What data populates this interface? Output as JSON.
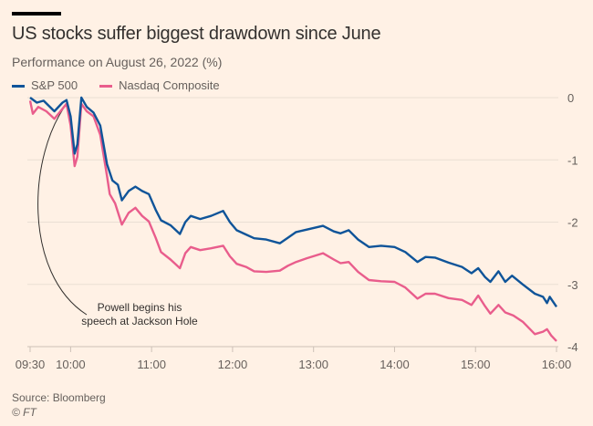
{
  "title": "US stocks suffer biggest drawdown since June",
  "subtitle": "Performance on August 26, 2022 (%)",
  "source": "Source: Bloomberg",
  "credit": "© FT",
  "chart_data": {
    "type": "line",
    "title": "US stocks suffer biggest drawdown since June",
    "subtitle": "Performance on August 26, 2022 (%)",
    "xlabel": "",
    "ylabel": "",
    "xlim": [
      "09:30",
      "16:00"
    ],
    "ylim": [
      -4,
      0
    ],
    "x_ticks": [
      "09:30",
      "10:00",
      "11:00",
      "12:00",
      "13:00",
      "14:00",
      "15:00",
      "16:00"
    ],
    "y_ticks": [
      0,
      -1,
      -2,
      -3,
      -4
    ],
    "grid": true,
    "legend_position": "top-left",
    "annotation": {
      "text_line1": "Powell begins his",
      "text_line2": "speech at Jackson Hole",
      "time": "09:58"
    },
    "series": [
      {
        "name": "S&P 500",
        "color": "#0f5499",
        "points": [
          [
            "09:30",
            0
          ],
          [
            "09:35",
            -0.08
          ],
          [
            "09:40",
            -0.05
          ],
          [
            "09:48",
            -0.22
          ],
          [
            "09:54",
            -0.08
          ],
          [
            "09:57",
            -0.04
          ],
          [
            "10:00",
            -0.3
          ],
          [
            "10:03",
            -0.9
          ],
          [
            "10:05",
            -0.75
          ],
          [
            "10:08",
            0
          ],
          [
            "10:12",
            -0.15
          ],
          [
            "10:17",
            -0.24
          ],
          [
            "10:22",
            -0.45
          ],
          [
            "10:27",
            -1.07
          ],
          [
            "10:31",
            -1.33
          ],
          [
            "10:35",
            -1.4
          ],
          [
            "10:38",
            -1.65
          ],
          [
            "10:43",
            -1.5
          ],
          [
            "10:48",
            -1.43
          ],
          [
            "10:53",
            -1.5
          ],
          [
            "10:58",
            -1.55
          ],
          [
            "11:03",
            -1.8
          ],
          [
            "11:07",
            -1.97
          ],
          [
            "11:14",
            -2.05
          ],
          [
            "11:21",
            -2.19
          ],
          [
            "11:25",
            -2.0
          ],
          [
            "11:29",
            -1.9
          ],
          [
            "11:36",
            -1.95
          ],
          [
            "11:44",
            -1.9
          ],
          [
            "11:53",
            -1.82
          ],
          [
            "11:58",
            -2.0
          ],
          [
            "12:03",
            -2.13
          ],
          [
            "12:10",
            -2.2
          ],
          [
            "12:16",
            -2.26
          ],
          [
            "12:25",
            -2.28
          ],
          [
            "12:35",
            -2.34
          ],
          [
            "12:41",
            -2.25
          ],
          [
            "12:47",
            -2.16
          ],
          [
            "12:55",
            -2.12
          ],
          [
            "13:07",
            -2.06
          ],
          [
            "13:15",
            -2.15
          ],
          [
            "13:20",
            -2.18
          ],
          [
            "13:26",
            -2.13
          ],
          [
            "13:33",
            -2.28
          ],
          [
            "13:41",
            -2.4
          ],
          [
            "13:50",
            -2.38
          ],
          [
            "14:00",
            -2.4
          ],
          [
            "14:08",
            -2.48
          ],
          [
            "14:17",
            -2.64
          ],
          [
            "14:23",
            -2.56
          ],
          [
            "14:30",
            -2.57
          ],
          [
            "14:40",
            -2.65
          ],
          [
            "14:50",
            -2.72
          ],
          [
            "14:57",
            -2.82
          ],
          [
            "15:02",
            -2.74
          ],
          [
            "15:07",
            -2.88
          ],
          [
            "15:11",
            -2.96
          ],
          [
            "15:17",
            -2.79
          ],
          [
            "15:22",
            -2.96
          ],
          [
            "15:27",
            -2.86
          ],
          [
            "15:35",
            -3.0
          ],
          [
            "15:44",
            -3.15
          ],
          [
            "15:50",
            -3.2
          ],
          [
            "15:53",
            -3.3
          ],
          [
            "15:55",
            -3.2
          ],
          [
            "16:00",
            -3.36
          ]
        ]
      },
      {
        "name": "Nasdaq Composite",
        "color": "#e95d8c",
        "points": [
          [
            "09:30",
            -0.05
          ],
          [
            "09:32",
            -0.26
          ],
          [
            "09:36",
            -0.15
          ],
          [
            "09:42",
            -0.22
          ],
          [
            "09:48",
            -0.34
          ],
          [
            "09:54",
            -0.18
          ],
          [
            "09:57",
            -0.1
          ],
          [
            "10:00",
            -0.45
          ],
          [
            "10:03",
            -1.1
          ],
          [
            "10:05",
            -0.95
          ],
          [
            "10:08",
            -0.1
          ],
          [
            "10:12",
            -0.22
          ],
          [
            "10:17",
            -0.3
          ],
          [
            "10:22",
            -0.6
          ],
          [
            "10:27",
            -1.26
          ],
          [
            "10:29",
            -1.55
          ],
          [
            "10:33",
            -1.7
          ],
          [
            "10:38",
            -2.04
          ],
          [
            "10:43",
            -1.85
          ],
          [
            "10:48",
            -1.77
          ],
          [
            "10:53",
            -1.9
          ],
          [
            "10:58",
            -1.99
          ],
          [
            "11:03",
            -2.25
          ],
          [
            "11:07",
            -2.48
          ],
          [
            "11:14",
            -2.6
          ],
          [
            "11:21",
            -2.74
          ],
          [
            "11:25",
            -2.5
          ],
          [
            "11:29",
            -2.4
          ],
          [
            "11:36",
            -2.45
          ],
          [
            "11:44",
            -2.42
          ],
          [
            "11:53",
            -2.38
          ],
          [
            "11:58",
            -2.55
          ],
          [
            "12:03",
            -2.67
          ],
          [
            "12:10",
            -2.72
          ],
          [
            "12:16",
            -2.79
          ],
          [
            "12:25",
            -2.8
          ],
          [
            "12:35",
            -2.78
          ],
          [
            "12:41",
            -2.7
          ],
          [
            "12:47",
            -2.64
          ],
          [
            "12:55",
            -2.58
          ],
          [
            "13:07",
            -2.5
          ],
          [
            "13:15",
            -2.6
          ],
          [
            "13:20",
            -2.66
          ],
          [
            "13:26",
            -2.64
          ],
          [
            "13:33",
            -2.8
          ],
          [
            "13:41",
            -2.93
          ],
          [
            "13:50",
            -2.95
          ],
          [
            "14:00",
            -2.96
          ],
          [
            "14:08",
            -3.05
          ],
          [
            "14:17",
            -3.23
          ],
          [
            "14:23",
            -3.15
          ],
          [
            "14:30",
            -3.15
          ],
          [
            "14:40",
            -3.22
          ],
          [
            "14:50",
            -3.25
          ],
          [
            "14:57",
            -3.33
          ],
          [
            "15:02",
            -3.18
          ],
          [
            "15:07",
            -3.35
          ],
          [
            "15:11",
            -3.47
          ],
          [
            "15:17",
            -3.33
          ],
          [
            "15:22",
            -3.45
          ],
          [
            "15:28",
            -3.5
          ],
          [
            "15:35",
            -3.6
          ],
          [
            "15:44",
            -3.8
          ],
          [
            "15:50",
            -3.76
          ],
          [
            "15:53",
            -3.72
          ],
          [
            "15:56",
            -3.82
          ],
          [
            "16:00",
            -3.91
          ]
        ]
      }
    ]
  }
}
